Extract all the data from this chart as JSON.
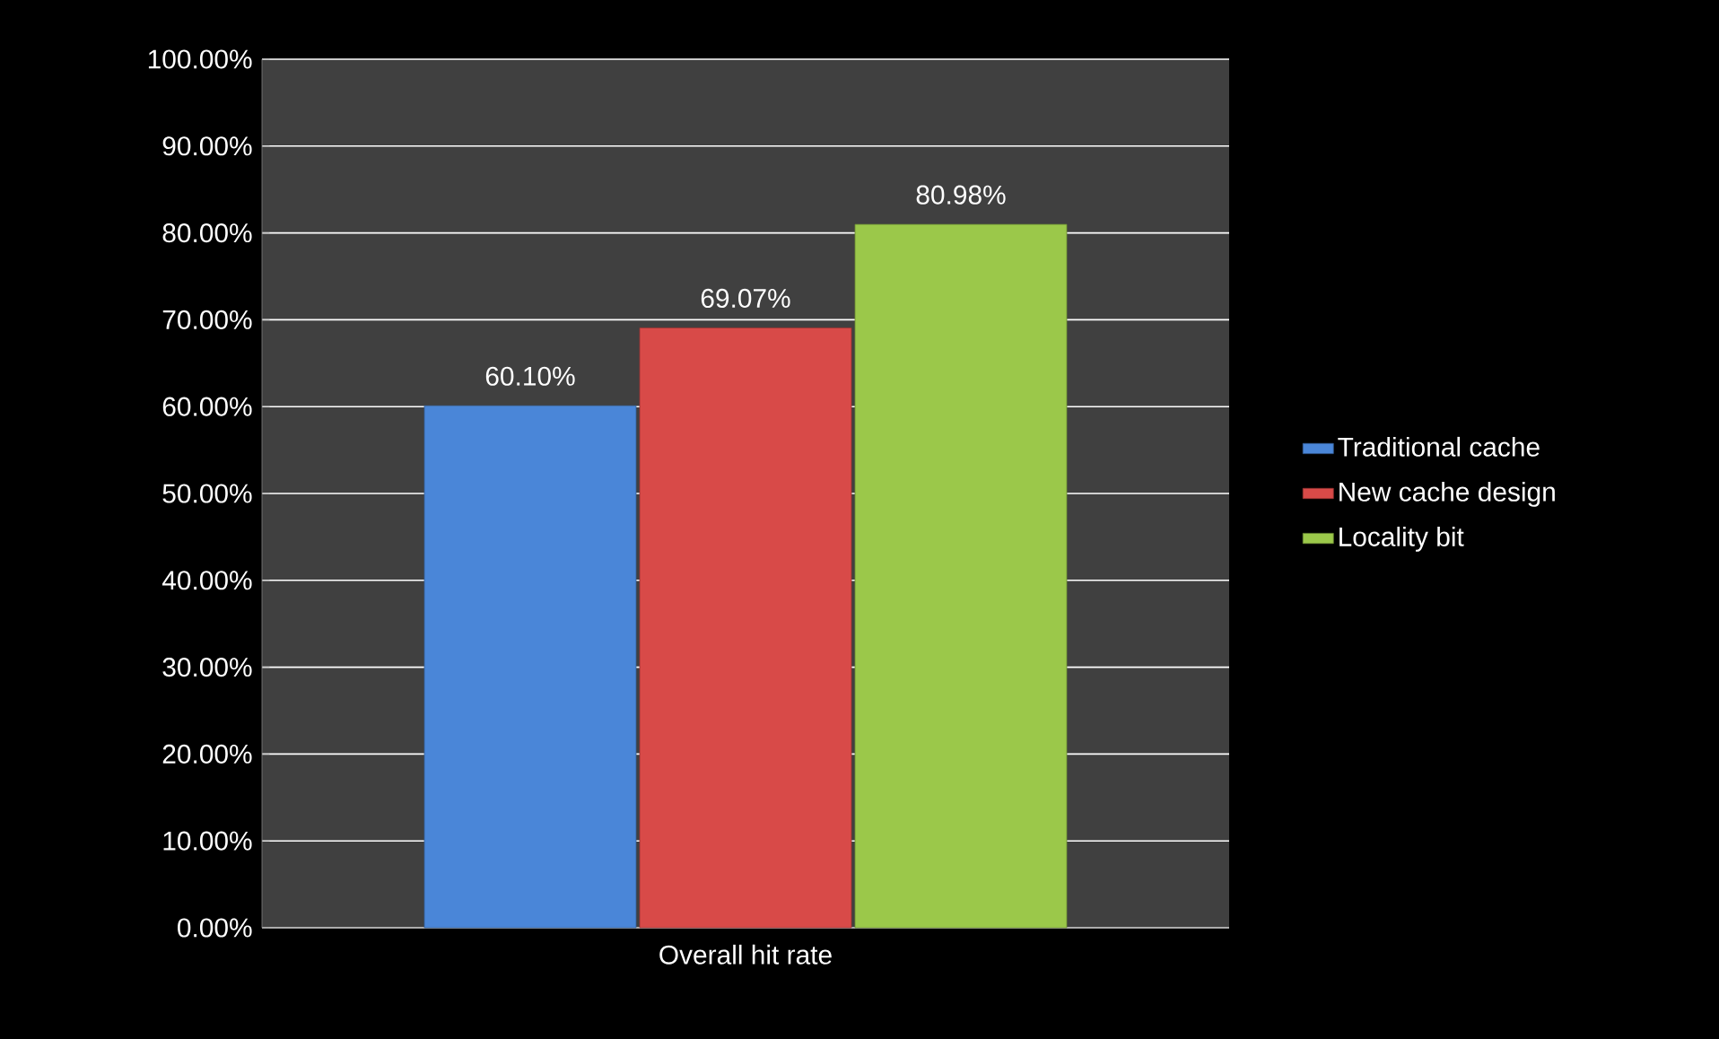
{
  "chart_data": {
    "type": "bar",
    "categories": [
      "Overall hit rate"
    ],
    "series": [
      {
        "name": "Traditional cache",
        "color": "#4a86d8",
        "values": [
          60.1
        ],
        "value_labels": [
          "60.10%"
        ]
      },
      {
        "name": "New cache design",
        "color": "#d84a48",
        "values": [
          69.07
        ],
        "value_labels": [
          "69.07%"
        ]
      },
      {
        "name": "Locality bit",
        "color": "#9bc84a",
        "values": [
          80.98
        ],
        "value_labels": [
          "80.98%"
        ]
      }
    ],
    "ylim": [
      0,
      100
    ],
    "yticks": [
      {
        "value": 0,
        "label": "0.00%"
      },
      {
        "value": 10,
        "label": "10.00%"
      },
      {
        "value": 20,
        "label": "20.00%"
      },
      {
        "value": 30,
        "label": "30.00%"
      },
      {
        "value": 40,
        "label": "40.00%"
      },
      {
        "value": 50,
        "label": "50.00%"
      },
      {
        "value": 60,
        "label": "60.00%"
      },
      {
        "value": 70,
        "label": "70.00%"
      },
      {
        "value": 80,
        "label": "80.00%"
      },
      {
        "value": 90,
        "label": "90.00%"
      },
      {
        "value": 100,
        "label": "100.00%"
      }
    ],
    "grid": "y",
    "legend": "right"
  }
}
